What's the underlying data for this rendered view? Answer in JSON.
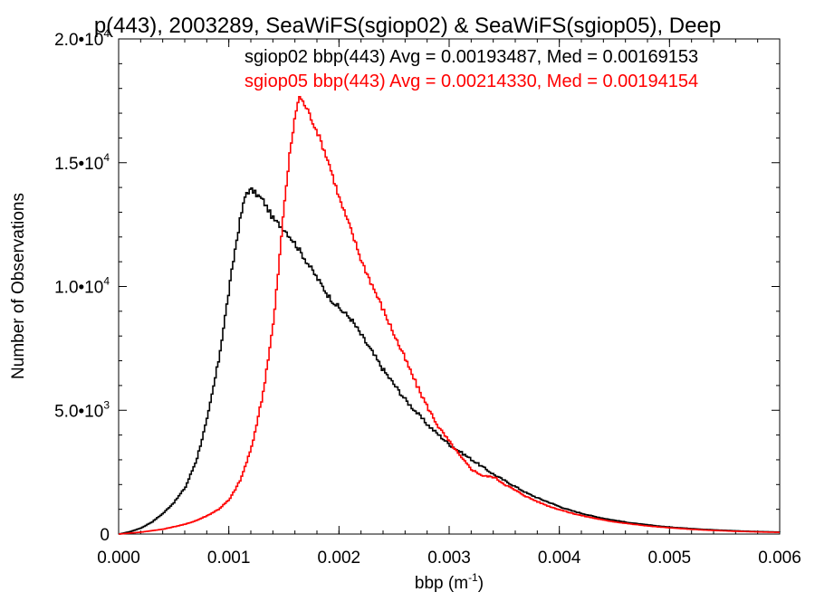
{
  "chart_data": {
    "type": "line",
    "title": "bbp(443), 2003289, SeaWiFS(sgiop02) & SeaWiFS(sgiop05), Deep",
    "title_visible": "p(443), 2003289, SeaWiFS(sgiop02) & SeaWiFS(sgiop05), Deep",
    "xlabel_main": "bbp (m",
    "xlabel_sup": "-1",
    "xlabel_end": ")",
    "ylabel": "Number of Observations",
    "xlim": [
      0.0,
      0.006
    ],
    "ylim": [
      0,
      20000
    ],
    "x_ticks": [
      {
        "value": 0.0,
        "label": "0.000"
      },
      {
        "value": 0.001,
        "label": "0.001"
      },
      {
        "value": 0.002,
        "label": "0.002"
      },
      {
        "value": 0.003,
        "label": "0.003"
      },
      {
        "value": 0.004,
        "label": "0.004"
      },
      {
        "value": 0.005,
        "label": "0.005"
      },
      {
        "value": 0.006,
        "label": "0.006"
      }
    ],
    "y_ticks": [
      {
        "value": 0,
        "mant": "0",
        "exp": ""
      },
      {
        "value": 5000,
        "mant": "5.0•10",
        "exp": "3"
      },
      {
        "value": 10000,
        "mant": "1.0•10",
        "exp": "4"
      },
      {
        "value": 15000,
        "mant": "1.5•10",
        "exp": "4"
      },
      {
        "value": 20000,
        "mant": "2.0•10",
        "exp": "4"
      }
    ],
    "grid": false,
    "legend_position": "top-right",
    "series": [
      {
        "name": "sgiop02 bbp(443) Avg = 0.00193487, Med = 0.00169153",
        "color": "#000000",
        "points": [
          [
            0.0,
            0
          ],
          [
            0.0001,
            100
          ],
          [
            0.0002,
            250
          ],
          [
            0.0003,
            500
          ],
          [
            0.0004,
            850
          ],
          [
            0.0005,
            1300
          ],
          [
            0.0006,
            1900
          ],
          [
            0.0007,
            3000
          ],
          [
            0.0008,
            4700
          ],
          [
            0.0009,
            7000
          ],
          [
            0.001,
            10000
          ],
          [
            0.00105,
            11500
          ],
          [
            0.0011,
            12800
          ],
          [
            0.00115,
            13800
          ],
          [
            0.0012,
            13900
          ],
          [
            0.0013,
            13500
          ],
          [
            0.0014,
            12700
          ],
          [
            0.0015,
            12300
          ],
          [
            0.0016,
            11700
          ],
          [
            0.0017,
            11000
          ],
          [
            0.0018,
            10300
          ],
          [
            0.0019,
            9600
          ],
          [
            0.002,
            9100
          ],
          [
            0.0021,
            8700
          ],
          [
            0.0022,
            8000
          ],
          [
            0.0023,
            7300
          ],
          [
            0.0024,
            6600
          ],
          [
            0.0025,
            6000
          ],
          [
            0.0026,
            5400
          ],
          [
            0.0027,
            4900
          ],
          [
            0.0028,
            4400
          ],
          [
            0.0029,
            4000
          ],
          [
            0.003,
            3600
          ],
          [
            0.0031,
            3300
          ],
          [
            0.0032,
            3000
          ],
          [
            0.0033,
            2700
          ],
          [
            0.0034,
            2400
          ],
          [
            0.0035,
            2150
          ],
          [
            0.0036,
            1900
          ],
          [
            0.0037,
            1650
          ],
          [
            0.0038,
            1450
          ],
          [
            0.0039,
            1280
          ],
          [
            0.004,
            1100
          ],
          [
            0.0041,
            950
          ],
          [
            0.0042,
            830
          ],
          [
            0.0043,
            720
          ],
          [
            0.0044,
            630
          ],
          [
            0.0045,
            550
          ],
          [
            0.0046,
            480
          ],
          [
            0.0047,
            420
          ],
          [
            0.0048,
            370
          ],
          [
            0.0049,
            320
          ],
          [
            0.005,
            280
          ],
          [
            0.0051,
            250
          ],
          [
            0.0052,
            220
          ],
          [
            0.0053,
            190
          ],
          [
            0.0054,
            170
          ],
          [
            0.0055,
            150
          ],
          [
            0.0056,
            130
          ],
          [
            0.0057,
            115
          ],
          [
            0.0058,
            100
          ],
          [
            0.0059,
            90
          ],
          [
            0.006,
            80
          ]
        ]
      },
      {
        "name": "sgiop05 bbp(443) Avg = 0.00214330, Med = 0.00194154",
        "color": "#ff0000",
        "points": [
          [
            0.0,
            0
          ],
          [
            0.0002,
            80
          ],
          [
            0.0004,
            200
          ],
          [
            0.0006,
            400
          ],
          [
            0.0007,
            550
          ],
          [
            0.0008,
            750
          ],
          [
            0.0009,
            1000
          ],
          [
            0.001,
            1400
          ],
          [
            0.0011,
            2200
          ],
          [
            0.0012,
            3500
          ],
          [
            0.0013,
            5600
          ],
          [
            0.0014,
            8600
          ],
          [
            0.00145,
            11000
          ],
          [
            0.0015,
            13500
          ],
          [
            0.00155,
            15500
          ],
          [
            0.0016,
            17000
          ],
          [
            0.00163,
            17700
          ],
          [
            0.0017,
            17200
          ],
          [
            0.0018,
            16200
          ],
          [
            0.0019,
            15000
          ],
          [
            0.002,
            13500
          ],
          [
            0.0021,
            12300
          ],
          [
            0.0022,
            11000
          ],
          [
            0.0023,
            10000
          ],
          [
            0.0024,
            9000
          ],
          [
            0.0025,
            8000
          ],
          [
            0.0026,
            7000
          ],
          [
            0.0027,
            6000
          ],
          [
            0.0028,
            5100
          ],
          [
            0.0029,
            4300
          ],
          [
            0.003,
            3700
          ],
          [
            0.0031,
            3100
          ],
          [
            0.0032,
            2600
          ],
          [
            0.0033,
            2350
          ],
          [
            0.0034,
            2300
          ],
          [
            0.0035,
            2000
          ],
          [
            0.0036,
            1750
          ],
          [
            0.0037,
            1500
          ],
          [
            0.0038,
            1300
          ],
          [
            0.0039,
            1120
          ],
          [
            0.004,
            980
          ],
          [
            0.0041,
            850
          ],
          [
            0.0042,
            740
          ],
          [
            0.0043,
            650
          ],
          [
            0.0044,
            560
          ],
          [
            0.0045,
            490
          ],
          [
            0.0046,
            430
          ],
          [
            0.0047,
            375
          ],
          [
            0.0048,
            325
          ],
          [
            0.0049,
            285
          ],
          [
            0.005,
            250
          ],
          [
            0.0051,
            220
          ],
          [
            0.0052,
            190
          ],
          [
            0.0053,
            165
          ],
          [
            0.0054,
            145
          ],
          [
            0.0055,
            128
          ],
          [
            0.0056,
            112
          ],
          [
            0.0057,
            98
          ],
          [
            0.0058,
            86
          ],
          [
            0.0059,
            76
          ],
          [
            0.006,
            68
          ]
        ]
      }
    ]
  }
}
